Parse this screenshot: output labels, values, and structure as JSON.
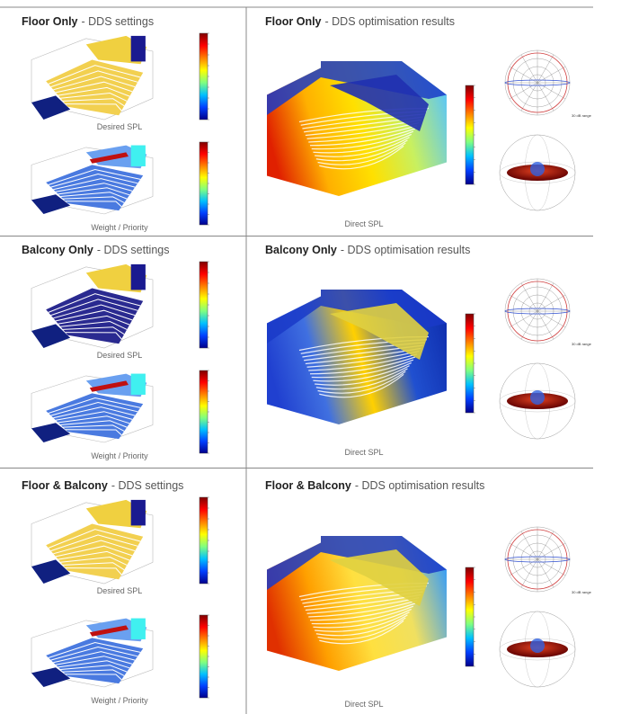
{
  "sections": [
    {
      "left": {
        "title_bold": "Floor Only",
        "title_rest": "- DDS settings",
        "captions": [
          "Desired SPL",
          "Weight / Priority"
        ]
      },
      "right": {
        "title_bold": "Floor Only",
        "title_rest": "- DDS optimisation results",
        "caption": "Direct SPL",
        "polar_note": "30 dB range"
      }
    },
    {
      "left": {
        "title_bold": "Balcony Only",
        "title_rest": "- DDS settings",
        "captions": [
          "Desired SPL",
          "Weight / Priority"
        ]
      },
      "right": {
        "title_bold": "Balcony Only",
        "title_rest": "- DDS optimisation results",
        "caption": "Direct SPL",
        "polar_note": "30 dB range"
      }
    },
    {
      "left": {
        "title_bold": "Floor & Balcony",
        "title_rest": "- DDS settings",
        "captions": [
          "Desired SPL",
          "Weight / Priority"
        ]
      },
      "right": {
        "title_bold": "Floor & Balcony",
        "title_rest": "- DDS optimisation results",
        "caption": "Direct SPL",
        "polar_note": "30 dB range"
      }
    }
  ]
}
